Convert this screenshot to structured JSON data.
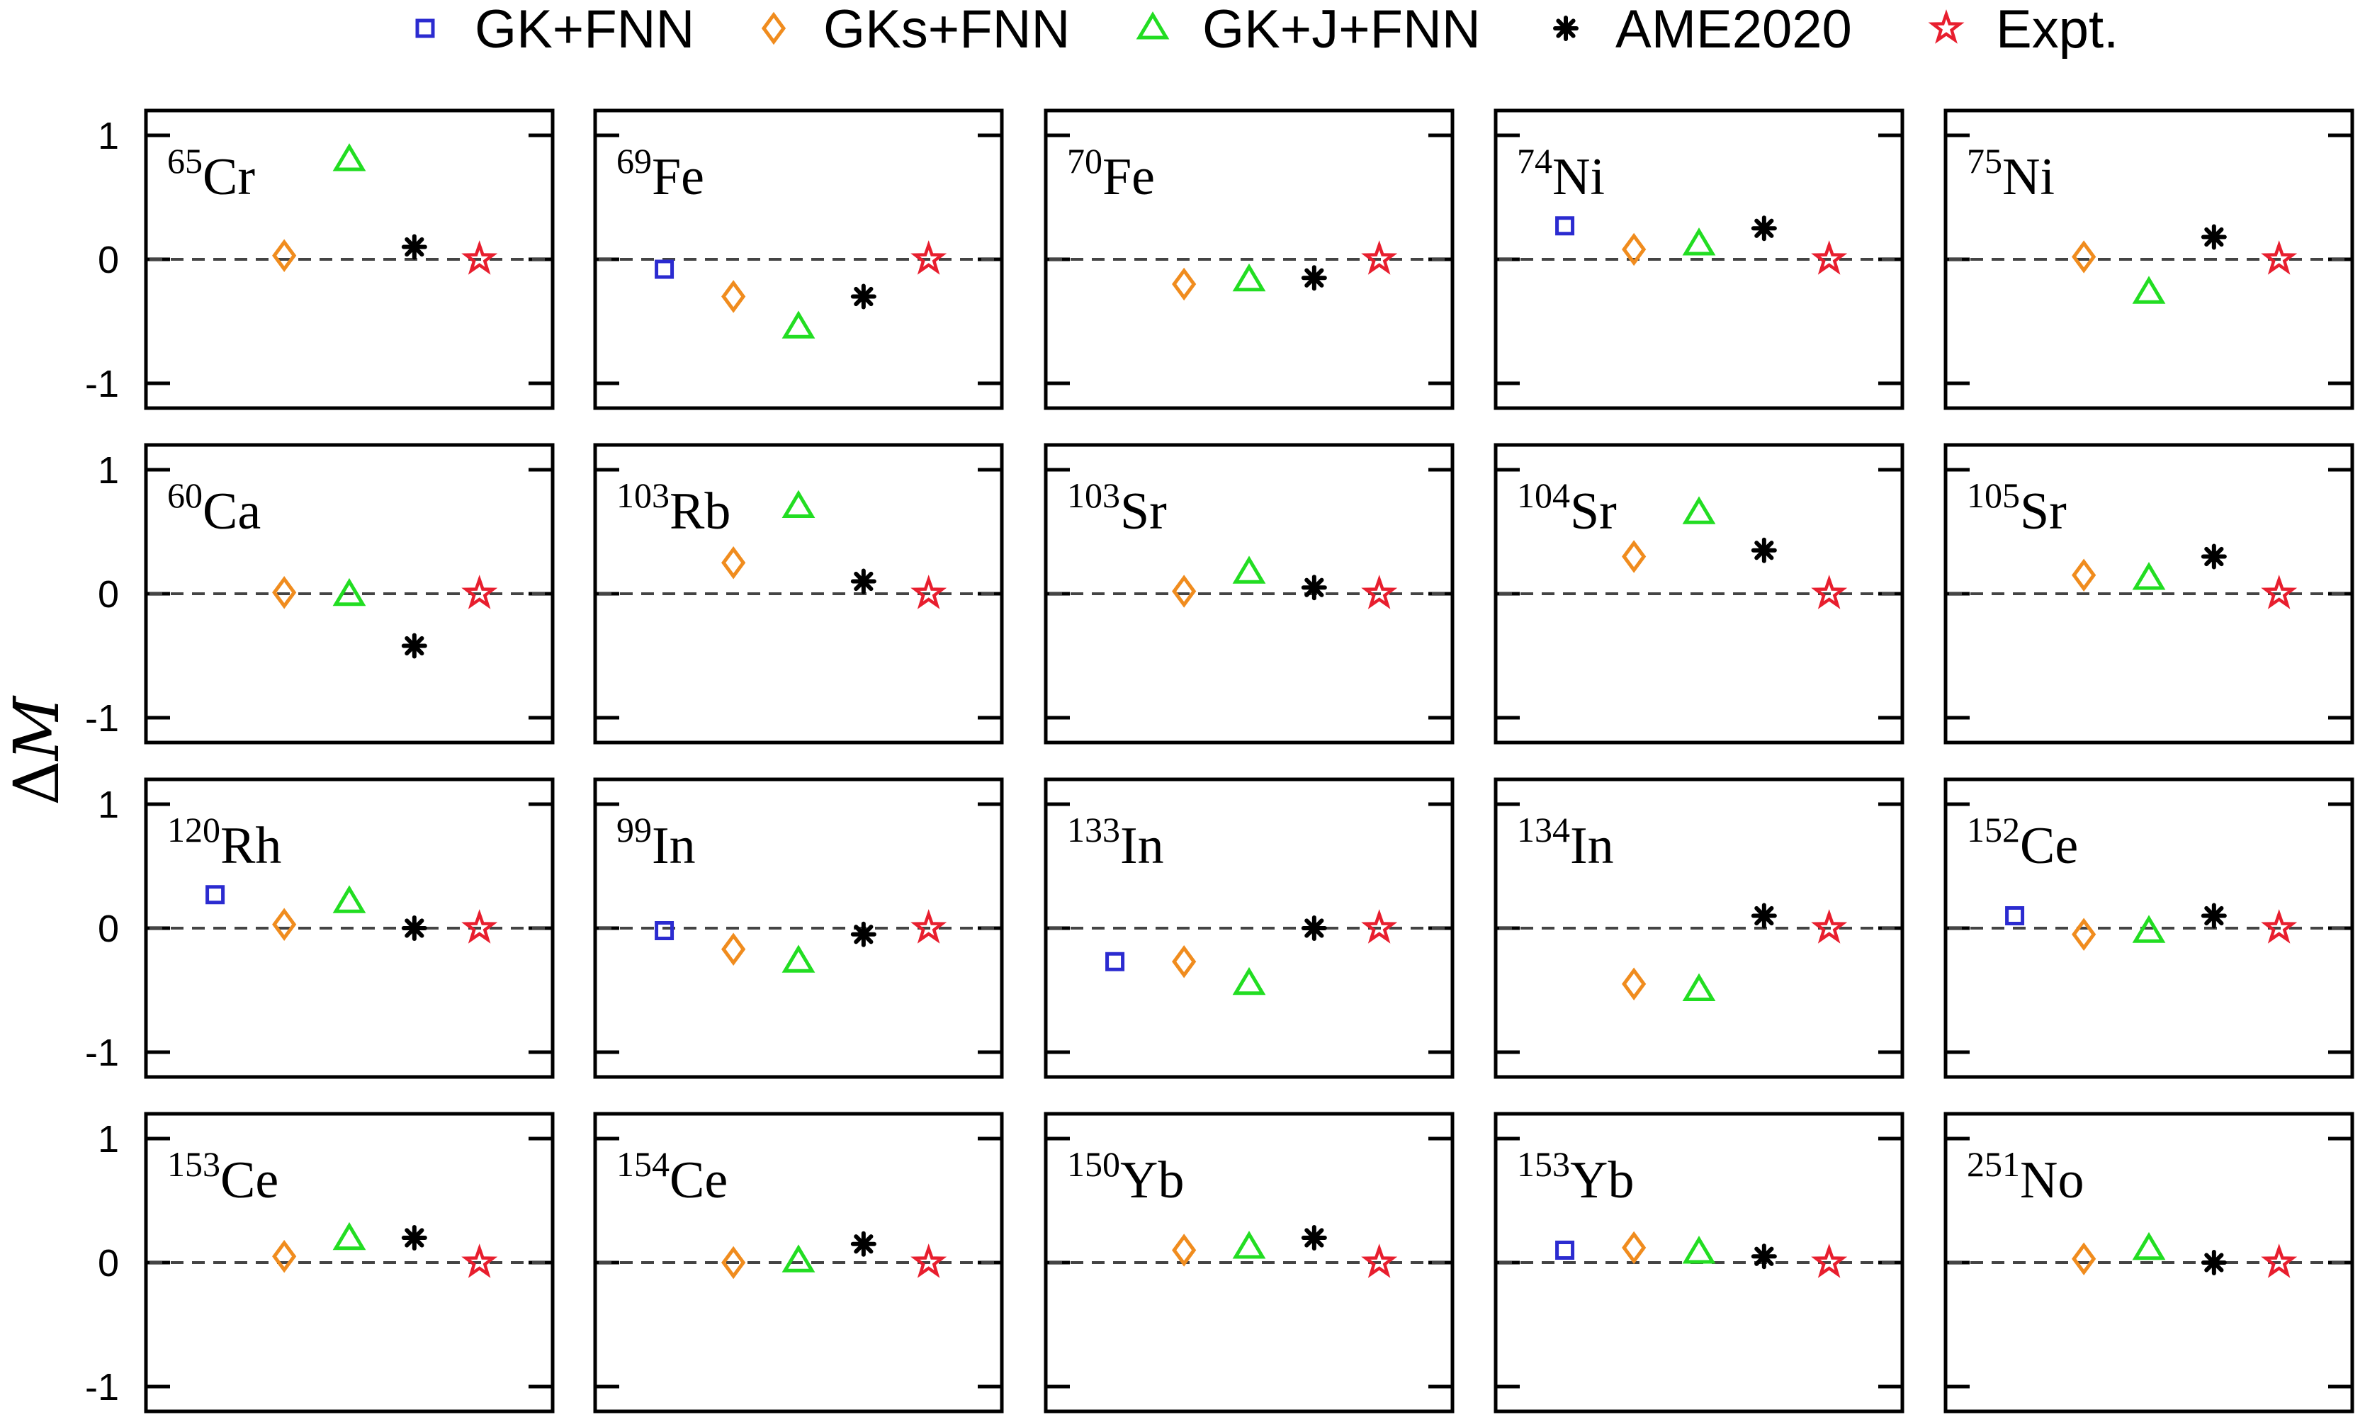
{
  "chart_data": {
    "type": "scatter",
    "ylabel": "ΔM",
    "ylim": [
      -1.2,
      1.2
    ],
    "yticks": [
      "1",
      "0",
      "-1"
    ],
    "reference_line": 0,
    "grid": false,
    "legend_position": "top",
    "legend": [
      {
        "key": "gk",
        "label": "GK+FNN",
        "marker": "square",
        "color": "#2b2bd0"
      },
      {
        "key": "gks",
        "label": "GKs+FNN",
        "marker": "diamond",
        "color": "#f08c1e"
      },
      {
        "key": "gkj",
        "label": "GK+J+FNN",
        "marker": "triangle",
        "color": "#22dd22"
      },
      {
        "key": "ame",
        "label": "AME2020",
        "marker": "asterisk",
        "color": "#000000"
      },
      {
        "key": "expt",
        "label": "Expt.",
        "marker": "star",
        "color": "#e81e2e"
      }
    ],
    "panels": [
      {
        "mass": "65",
        "element": "Cr",
        "gks": 0.03,
        "gkj": 0.8,
        "ame": 0.1,
        "expt": 0
      },
      {
        "mass": "69",
        "element": "Fe",
        "gk": -0.08,
        "gks": -0.3,
        "gkj": -0.55,
        "ame": -0.3,
        "expt": 0
      },
      {
        "mass": "70",
        "element": "Fe",
        "gks": -0.2,
        "gkj": -0.17,
        "ame": -0.15,
        "expt": 0
      },
      {
        "mass": "74",
        "element": "Ni",
        "gk": 0.27,
        "gks": 0.08,
        "gkj": 0.12,
        "ame": 0.25,
        "expt": 0
      },
      {
        "mass": "75",
        "element": "Ni",
        "gks": 0.02,
        "gkj": -0.27,
        "ame": 0.18,
        "expt": 0
      },
      {
        "mass": "60",
        "element": "Ca",
        "gks": 0.01,
        "gkj": -0.01,
        "ame": -0.42,
        "expt": 0
      },
      {
        "mass": "103",
        "element": "Rb",
        "gks": 0.25,
        "gkj": 0.7,
        "ame": 0.1,
        "expt": 0
      },
      {
        "mass": "103",
        "element": "Sr",
        "gks": 0.02,
        "gkj": 0.17,
        "ame": 0.05,
        "expt": 0
      },
      {
        "mass": "104",
        "element": "Sr",
        "gks": 0.3,
        "gkj": 0.65,
        "ame": 0.35,
        "expt": 0
      },
      {
        "mass": "105",
        "element": "Sr",
        "gks": 0.15,
        "gkj": 0.12,
        "ame": 0.3,
        "expt": 0
      },
      {
        "mass": "120",
        "element": "Rh",
        "gk": 0.27,
        "gks": 0.03,
        "gkj": 0.21,
        "ame": 0,
        "expt": 0
      },
      {
        "mass": "99",
        "element": "In",
        "gk": -0.02,
        "gks": -0.17,
        "gkj": -0.27,
        "ame": -0.05,
        "expt": 0
      },
      {
        "mass": "133",
        "element": "In",
        "gk": -0.27,
        "gks": -0.27,
        "gkj": -0.45,
        "ame": 0,
        "expt": 0
      },
      {
        "mass": "134",
        "element": "In",
        "gks": -0.45,
        "gkj": -0.5,
        "ame": 0.1,
        "expt": 0
      },
      {
        "mass": "152",
        "element": "Ce",
        "gk": 0.1,
        "gks": -0.05,
        "gkj": -0.03,
        "ame": 0.1,
        "expt": 0
      },
      {
        "mass": "153",
        "element": "Ce",
        "gks": 0.05,
        "gkj": 0.19,
        "ame": 0.2,
        "expt": 0
      },
      {
        "mass": "154",
        "element": "Ce",
        "gks": 0,
        "gkj": 0.01,
        "ame": 0.15,
        "expt": 0
      },
      {
        "mass": "150",
        "element": "Yb",
        "gks": 0.1,
        "gkj": 0.12,
        "ame": 0.2,
        "expt": 0
      },
      {
        "mass": "153",
        "element": "Yb",
        "gk": 0.1,
        "gks": 0.12,
        "gkj": 0.08,
        "ame": 0.05,
        "expt": 0
      },
      {
        "mass": "251",
        "element": "No",
        "gks": 0.03,
        "gkj": 0.11,
        "ame": 0,
        "expt": 0
      }
    ]
  }
}
